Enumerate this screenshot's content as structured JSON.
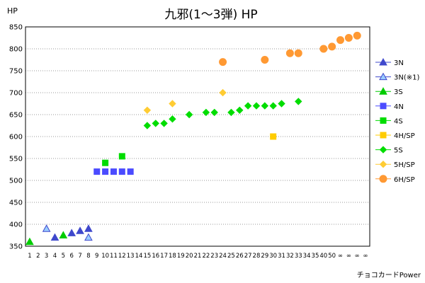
{
  "chart_data": {
    "type": "scatter",
    "title": "九邪(1～3弾) HP",
    "ylabel": "HP",
    "xlabel": "",
    "footer": "チョコカードPower",
    "ylim": [
      350,
      850
    ],
    "yticks": [
      350,
      400,
      450,
      500,
      550,
      600,
      650,
      700,
      750,
      800,
      850
    ],
    "grid": true,
    "legend_position": "right",
    "categories": [
      "1",
      "2",
      "3",
      "4",
      "5",
      "6",
      "7",
      "8",
      "9",
      "10",
      "11",
      "12",
      "13",
      "14",
      "15",
      "16",
      "17",
      "18",
      "19",
      "20",
      "21",
      "22",
      "23",
      "24",
      "25",
      "26",
      "27",
      "28",
      "29",
      "30",
      "31",
      "32",
      "33",
      "34",
      "35",
      "40",
      "50",
      "∞",
      "∞",
      "∞",
      "∞"
    ],
    "series": [
      {
        "name": "3N",
        "marker": "triangle",
        "color": "#3f48cc",
        "outline": "#3f48cc",
        "points": [
          [
            4,
            370
          ],
          [
            6,
            380
          ],
          [
            7,
            385
          ],
          [
            8,
            390
          ]
        ]
      },
      {
        "name": "3N(※1)",
        "marker": "triangle",
        "color": "#99ccff",
        "outline": "#3f48cc",
        "points": [
          [
            3,
            390
          ],
          [
            8,
            370
          ]
        ]
      },
      {
        "name": "3S",
        "marker": "triangle",
        "color": "#00cc00",
        "outline": "#00cc00",
        "points": [
          [
            1,
            360
          ],
          [
            5,
            375
          ]
        ]
      },
      {
        "name": "4N",
        "marker": "square",
        "color": "#4b4bff",
        "outline": "#4b4bff",
        "points": [
          [
            9,
            520
          ],
          [
            10,
            520
          ],
          [
            11,
            520
          ],
          [
            12,
            520
          ],
          [
            13,
            520
          ]
        ]
      },
      {
        "name": "4S",
        "marker": "square",
        "color": "#00dd00",
        "outline": "#00dd00",
        "points": [
          [
            10,
            540
          ],
          [
            12,
            555
          ]
        ]
      },
      {
        "name": "4H/SP",
        "marker": "square",
        "color": "#ffcc00",
        "outline": "#ffcc00",
        "points": [
          [
            30,
            600
          ]
        ]
      },
      {
        "name": "5S",
        "marker": "diamond",
        "color": "#00dd00",
        "outline": "#00dd00",
        "points": [
          [
            15,
            625
          ],
          [
            16,
            630
          ],
          [
            17,
            630
          ],
          [
            18,
            640
          ],
          [
            20,
            650
          ],
          [
            22,
            655
          ],
          [
            23,
            655
          ],
          [
            25,
            655
          ],
          [
            26,
            660
          ],
          [
            27,
            670
          ],
          [
            28,
            670
          ],
          [
            29,
            670
          ],
          [
            30,
            670
          ],
          [
            31,
            675
          ],
          [
            33,
            680
          ]
        ]
      },
      {
        "name": "5H/SP",
        "marker": "diamond",
        "color": "#ffcc33",
        "outline": "#ffcc33",
        "points": [
          [
            15,
            660
          ],
          [
            18,
            675
          ],
          [
            24,
            700
          ]
        ]
      },
      {
        "name": "6H/SP",
        "marker": "circle",
        "color": "#ff9933",
        "outline": "#ff9933",
        "points": [
          [
            24,
            770
          ],
          [
            29,
            775
          ],
          [
            32,
            790
          ],
          [
            33,
            790
          ],
          [
            36,
            800
          ],
          [
            37,
            805
          ],
          [
            38,
            820
          ],
          [
            39,
            825
          ],
          [
            40,
            830
          ]
        ]
      }
    ]
  }
}
